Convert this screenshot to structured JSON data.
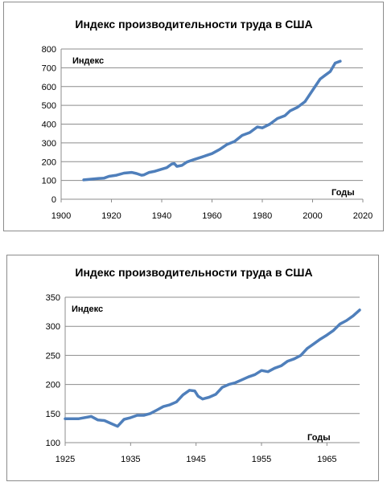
{
  "chart_data": [
    {
      "type": "line",
      "title": "Индекс производительности труда в США",
      "xlabel": "Годы",
      "ylabel": "Индекс",
      "xlim": [
        1900,
        2020
      ],
      "ylim": [
        0,
        800
      ],
      "x_ticks": [
        "1900",
        "1920",
        "1940",
        "1960",
        "1980",
        "2000",
        "2020"
      ],
      "y_ticks": [
        "0",
        "100",
        "200",
        "300",
        "400",
        "500",
        "600",
        "700",
        "800"
      ],
      "grid": "horizontal",
      "series_color": "#4f7fbb",
      "x": [
        1909,
        1912,
        1915,
        1917,
        1919,
        1922,
        1925,
        1928,
        1930,
        1932,
        1933,
        1935,
        1937,
        1940,
        1942,
        1944,
        1945,
        1946,
        1948,
        1950,
        1953,
        1956,
        1960,
        1963,
        1966,
        1969,
        1972,
        1975,
        1978,
        1980,
        1983,
        1986,
        1989,
        1991,
        1994,
        1997,
        2000,
        2003,
        2005,
        2007,
        2009,
        2011
      ],
      "y": [
        103,
        107,
        111,
        112,
        122,
        128,
        139,
        143,
        137,
        128,
        130,
        143,
        148,
        160,
        168,
        188,
        190,
        175,
        180,
        198,
        212,
        225,
        243,
        265,
        292,
        308,
        340,
        355,
        385,
        380,
        400,
        430,
        445,
        470,
        490,
        520,
        580,
        640,
        660,
        680,
        725,
        735
      ]
    },
    {
      "type": "line",
      "title": "Индекс производительности труда в США",
      "xlabel": "Годы",
      "ylabel": "Индекс",
      "xlim": [
        1925,
        1970
      ],
      "ylim": [
        100,
        350
      ],
      "x_ticks": [
        "1925",
        "1935",
        "1945",
        "1955",
        "1965"
      ],
      "y_ticks": [
        "100",
        "150",
        "200",
        "250",
        "300",
        "350"
      ],
      "grid": "horizontal",
      "series_color": "#4f7fbb",
      "x": [
        1925,
        1927,
        1929,
        1930,
        1931,
        1932,
        1933,
        1934,
        1935,
        1936,
        1937,
        1938,
        1939,
        1940,
        1941,
        1942,
        1943,
        1944,
        1944.8,
        1945.3,
        1946,
        1947,
        1948,
        1949,
        1950,
        1951,
        1952,
        1953,
        1954,
        1955,
        1956,
        1957,
        1958,
        1959,
        1960,
        1961,
        1962,
        1963,
        1964,
        1965,
        1966,
        1967,
        1968,
        1969,
        1970
      ],
      "y": [
        141,
        141,
        145,
        139,
        138,
        133,
        128,
        140,
        143,
        147,
        147,
        150,
        156,
        162,
        165,
        170,
        182,
        190,
        189,
        180,
        175,
        178,
        183,
        195,
        200,
        203,
        208,
        213,
        217,
        224,
        222,
        228,
        232,
        240,
        244,
        250,
        262,
        270,
        278,
        285,
        293,
        304,
        310,
        318,
        328
      ]
    }
  ]
}
